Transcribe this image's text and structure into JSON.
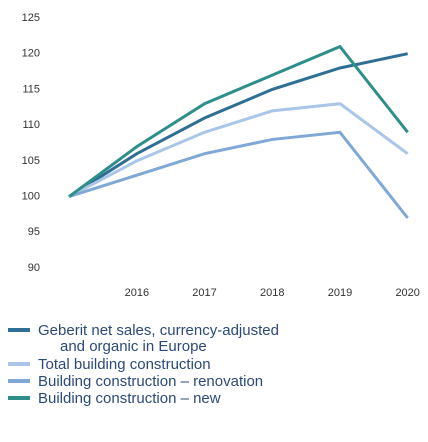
{
  "chart_data": {
    "type": "line",
    "x": [
      2015,
      2016,
      2017,
      2018,
      2019,
      2020
    ],
    "series": [
      {
        "name": "Geberit net sales, currency-adjusted and organic in Europe",
        "color": "#2f6f95",
        "values": [
          100,
          106,
          111,
          115,
          118,
          120
        ]
      },
      {
        "name": "Total building construction",
        "color": "#a9c6e8",
        "values": [
          100,
          105,
          109,
          112,
          113,
          106
        ]
      },
      {
        "name": "Building construction – renovation",
        "color": "#7fa8d6",
        "values": [
          100,
          103,
          106,
          108,
          109,
          97
        ]
      },
      {
        "name": "Building construction – new",
        "color": "#2e8f8a",
        "values": [
          100,
          107,
          113,
          117,
          121,
          109
        ]
      }
    ],
    "xlim": [
      2014.88,
      2020.3
    ],
    "ylim": [
      90,
      125
    ],
    "xticks": [
      2016,
      2017,
      2018,
      2019,
      2020
    ],
    "yticks": [
      90,
      95,
      100,
      105,
      110,
      115,
      120,
      125
    ]
  }
}
